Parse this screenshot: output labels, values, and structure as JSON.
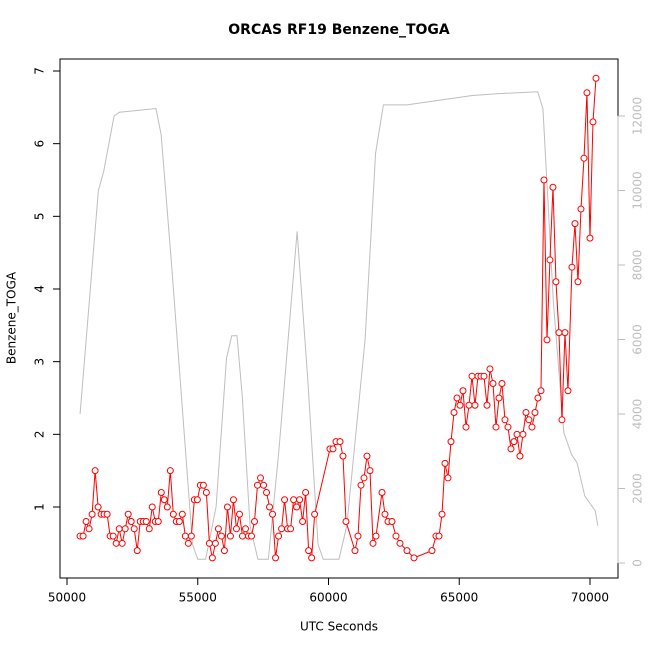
{
  "chart_data": {
    "type": "line",
    "title": "ORCAS RF19 Benzene_TOGA",
    "x_label": "UTC Seconds",
    "y_label": "Benzene_TOGA",
    "xlim": [
      49732,
      71071
    ],
    "xticks": [
      50000,
      55000,
      60000,
      65000,
      70000
    ],
    "ylim": [
      0.023,
      7.165
    ],
    "yticks": [
      1,
      2,
      3,
      4,
      5,
      6,
      7
    ],
    "y2lim": [
      -403,
      13530
    ],
    "y2ticks": [
      0,
      2000,
      4000,
      6000,
      8000,
      10000,
      12000
    ],
    "series": [
      {
        "color": "#ff0000",
        "markers": true,
        "x": [
          50500,
          50615,
          50730,
          50845,
          50960,
          51075,
          51190,
          51305,
          51420,
          51535,
          51650,
          51765,
          51880,
          51995,
          52110,
          52225,
          52340,
          52455,
          52570,
          52685,
          52800,
          52915,
          53030,
          53145,
          53260,
          53375,
          53490,
          53605,
          53720,
          53835,
          53950,
          54065,
          54180,
          54295,
          54410,
          54525,
          54640,
          54755,
          54870,
          54985,
          55100,
          55215,
          55330,
          55445,
          55560,
          55675,
          55790,
          55905,
          56020,
          56135,
          56250,
          56365,
          56480,
          56595,
          56710,
          56825,
          56940,
          57055,
          57170,
          57285,
          57400,
          57515,
          57630,
          57745,
          57860,
          57975,
          58090,
          58205,
          58320,
          58435,
          58550,
          58665,
          58780,
          58895,
          59010,
          59125,
          59240,
          59355,
          59470,
          60057,
          60172,
          60287,
          60440,
          60554,
          60669,
          61013,
          61128,
          61243,
          61357,
          61472,
          61587,
          61702,
          61816,
          62046,
          62160,
          62275,
          62428,
          62581,
          62734,
          63002,
          63270,
          63958,
          64111,
          64226,
          64340,
          64455,
          64570,
          64685,
          64799,
          64914,
          65029,
          65143,
          65258,
          65373,
          65487,
          65602,
          65717,
          65831,
          65946,
          66061,
          66175,
          66290,
          66405,
          66520,
          66634,
          66749,
          66864,
          66978,
          67093,
          67208,
          67322,
          67437,
          67552,
          67666,
          67781,
          67896,
          68010,
          68125,
          68240,
          68355,
          68469,
          68584,
          68699,
          68813,
          68928,
          69043,
          69158,
          69311,
          69426,
          69540,
          69655,
          69770,
          69884,
          69999,
          70114,
          70229
        ],
        "values": [
          0.6,
          0.6,
          0.8,
          0.7,
          0.9,
          1.5,
          1.0,
          0.9,
          0.9,
          0.9,
          0.6,
          0.6,
          0.5,
          0.7,
          0.5,
          0.7,
          0.9,
          0.8,
          0.7,
          0.4,
          0.8,
          0.8,
          0.8,
          0.7,
          1.0,
          0.8,
          0.8,
          1.2,
          1.1,
          1.0,
          1.5,
          0.9,
          0.8,
          0.8,
          0.9,
          0.6,
          0.5,
          0.6,
          1.1,
          1.1,
          1.3,
          1.3,
          1.2,
          0.5,
          0.3,
          0.5,
          0.7,
          0.6,
          0.4,
          1.0,
          0.6,
          1.1,
          0.7,
          0.9,
          0.6,
          0.7,
          0.6,
          0.6,
          0.8,
          1.3,
          1.4,
          1.3,
          1.2,
          1.0,
          0.9,
          0.3,
          0.6,
          0.7,
          1.1,
          0.7,
          0.7,
          1.1,
          1.0,
          1.1,
          0.8,
          1.2,
          0.4,
          0.3,
          0.9,
          1.8,
          1.8,
          1.9,
          1.9,
          1.7,
          0.8,
          0.4,
          0.6,
          1.3,
          1.4,
          1.7,
          1.5,
          0.5,
          0.6,
          1.2,
          0.9,
          0.8,
          0.8,
          0.6,
          0.5,
          0.4,
          0.3,
          0.4,
          0.6,
          0.6,
          0.9,
          1.6,
          1.4,
          1.9,
          2.3,
          2.5,
          2.4,
          2.6,
          2.1,
          2.4,
          2.8,
          2.4,
          2.8,
          2.8,
          2.8,
          2.4,
          2.9,
          2.7,
          2.1,
          2.5,
          2.7,
          2.2,
          2.1,
          1.8,
          1.9,
          2.0,
          1.7,
          2.0,
          2.3,
          2.2,
          2.1,
          2.3,
          2.5,
          2.6,
          5.5,
          3.3,
          4.4,
          5.4,
          4.1,
          3.4,
          2.2,
          3.4,
          2.6,
          4.3,
          4.9,
          4.1,
          5.1,
          5.8,
          6.7,
          4.7,
          6.3,
          6.9
        ]
      },
      {
        "color": "#bebebe",
        "axis": "y2",
        "markers": false,
        "x": [
          50500,
          51200,
          51400,
          51800,
          52000,
          53400,
          53600,
          54000,
          54800,
          55000,
          55300,
          55700,
          56100,
          56300,
          56500,
          56700,
          57000,
          57300,
          57700,
          58100,
          58800,
          59200,
          59600,
          59800,
          60400,
          60700,
          61400,
          61800,
          62100,
          63000,
          64000,
          65500,
          66500,
          68000,
          68200,
          68600,
          69000,
          69300,
          69500,
          69800,
          70000,
          70200,
          70300
        ],
        "values": [
          4000,
          10000,
          10500,
          12000,
          12100,
          12200,
          11500,
          8000,
          500,
          100,
          100,
          1500,
          5500,
          6100,
          6100,
          4500,
          1000,
          100,
          100,
          3000,
          8900,
          5000,
          500,
          100,
          100,
          1000,
          6000,
          11000,
          12300,
          12300,
          12400,
          12550,
          12600,
          12650,
          12200,
          7000,
          3500,
          2900,
          2700,
          1800,
          1600,
          1400,
          1000
        ]
      }
    ]
  }
}
